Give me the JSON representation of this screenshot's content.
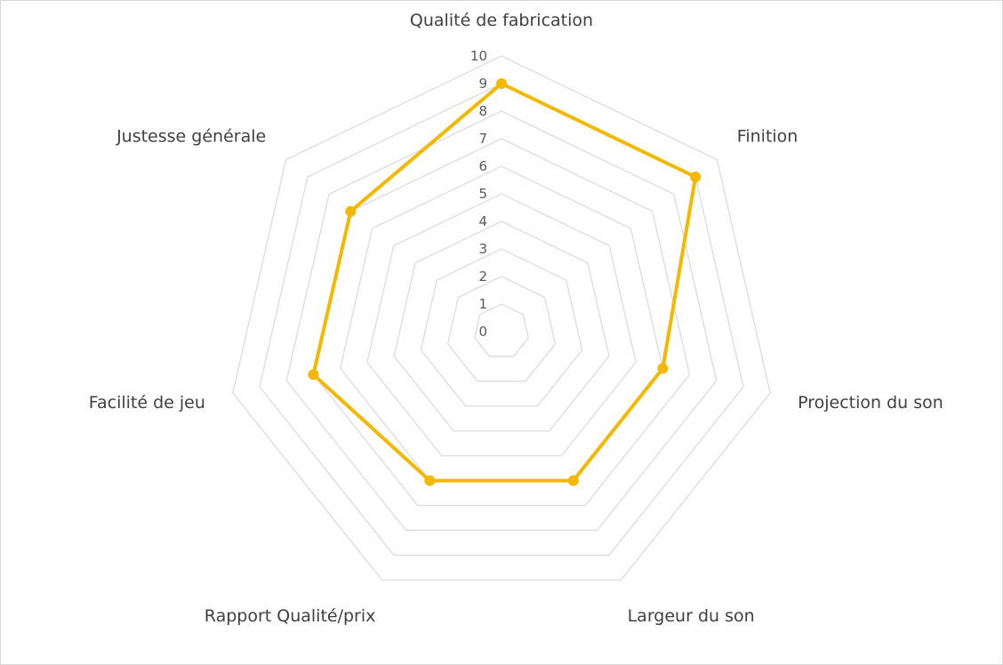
{
  "chart_data": {
    "type": "radar",
    "categories": [
      "Qualité de fabrication",
      "Finition",
      "Projection du son",
      "Largeur du son",
      "Rapport Qualité/prix",
      "Facilité de jeu",
      "Justesse générale"
    ],
    "series": [
      {
        "values": [
          9,
          9,
          6,
          6,
          6,
          7,
          7
        ],
        "color": "#f5b800"
      }
    ],
    "rlim": [
      0,
      10
    ],
    "ticks": [
      "0",
      "1",
      "2",
      "3",
      "4",
      "5",
      "6",
      "7",
      "8",
      "9",
      "10"
    ],
    "grid_color": "#d9d9d9",
    "legend": "none",
    "grid": true
  }
}
